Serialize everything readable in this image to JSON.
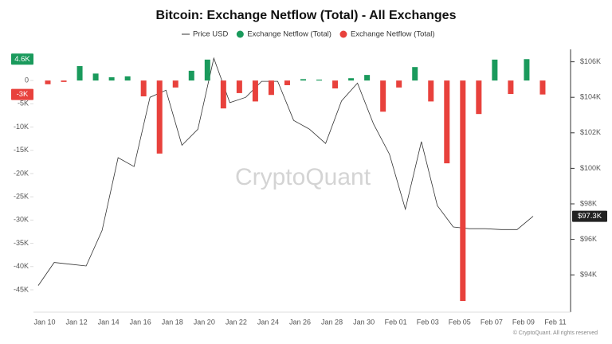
{
  "chart_data": {
    "type": "combo",
    "title": "Bitcoin: Exchange Netflow (Total) - All Exchanges",
    "watermark": "CryptoQuant",
    "credit": "© CryptoQuant. All rights reserved",
    "categories": [
      "Jan 10",
      null,
      "Jan 12",
      null,
      "Jan 14",
      null,
      "Jan 16",
      null,
      "Jan 18",
      null,
      "Jan 20",
      null,
      "Jan 22",
      null,
      "Jan 24",
      null,
      "Jan 26",
      null,
      "Jan 28",
      null,
      "Jan 30",
      null,
      "Feb 01",
      null,
      "Feb 03",
      null,
      "Feb 05",
      null,
      "Feb 07",
      null,
      "Feb 09",
      null,
      "Feb 11"
    ],
    "series": [
      {
        "name": "Price USD",
        "type": "line",
        "axis": "y2",
        "color": "#333333",
        "last_label": "$97.3K",
        "values": [
          93400,
          94700,
          94600,
          94500,
          96500,
          100600,
          100100,
          104000,
          104400,
          101300,
          102200,
          106200,
          103700,
          104000,
          104900,
          104900,
          102700,
          102200,
          101400,
          103800,
          104800,
          102500,
          100800,
          97700,
          101500,
          97900,
          96700,
          96600,
          96600,
          96550,
          96550,
          97300,
          null
        ]
      },
      {
        "name": "Exchange Netflow (Total)",
        "type": "bar",
        "color": "#1a9a5c",
        "last_label": "4.6K",
        "values": [
          null,
          null,
          3100,
          1500,
          700,
          900,
          null,
          null,
          null,
          2100,
          4500,
          null,
          null,
          null,
          null,
          null,
          300,
          200,
          null,
          500,
          1200,
          null,
          null,
          2900,
          null,
          null,
          null,
          null,
          4500,
          null,
          4600,
          null,
          null
        ]
      },
      {
        "name": "Exchange Netflow (Total)",
        "type": "bar",
        "color": "#e8413c",
        "last_label": "-3K",
        "values": [
          -800,
          -300,
          null,
          null,
          null,
          null,
          -3400,
          -15700,
          -1500,
          null,
          null,
          -6000,
          -2700,
          -4500,
          -3100,
          -1000,
          null,
          null,
          -1700,
          null,
          null,
          -6700,
          -1500,
          null,
          -4500,
          -17800,
          -47400,
          -7200,
          null,
          -2900,
          null,
          -3000,
          null
        ]
      }
    ],
    "ylim": [
      -49800,
      6700
    ],
    "yticks": [
      0,
      {
        "value": -5000,
        "label": "-5K"
      },
      {
        "value": -10000,
        "label": "-10K"
      },
      {
        "value": -15000,
        "label": "-15K"
      },
      {
        "value": -20000,
        "label": "-20K"
      },
      {
        "value": -25000,
        "label": "-25K"
      },
      {
        "value": -30000,
        "label": "-30K"
      },
      {
        "value": -35000,
        "label": "-35K"
      },
      {
        "value": -40000,
        "label": "-40K"
      },
      {
        "value": -45000,
        "label": "-45K"
      }
    ],
    "y2lim": [
      91900,
      106700
    ],
    "y2ticks": [
      {
        "value": 94000,
        "label": "$94K"
      },
      {
        "value": 96000,
        "label": "$96K"
      },
      {
        "value": 98000,
        "label": "$98K"
      },
      {
        "value": 100000,
        "label": "$100K"
      },
      {
        "value": 102000,
        "label": "$102K"
      },
      {
        "value": 104000,
        "label": "$104K"
      },
      {
        "value": 106000,
        "label": "$106K"
      }
    ],
    "grid": false
  }
}
